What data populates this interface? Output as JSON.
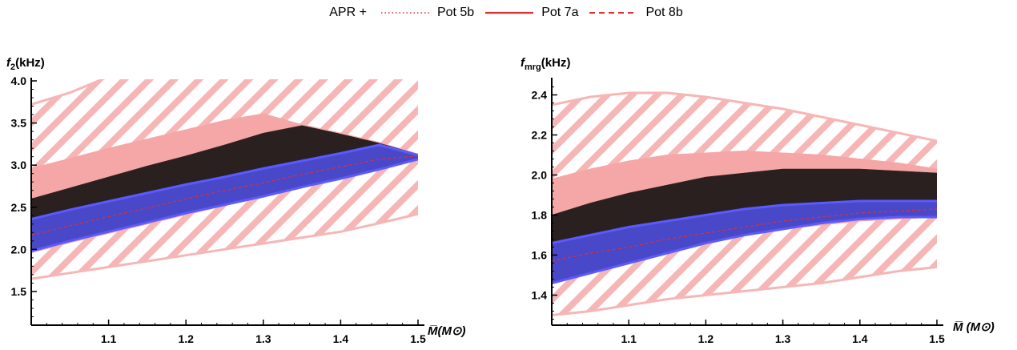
{
  "legend": {
    "prefix": "APR +",
    "entries": [
      {
        "name": "Pot 5b",
        "style": "dotted",
        "color": "#e03030"
      },
      {
        "name": "Pot 7a",
        "style": "solid",
        "color": "#e03030"
      },
      {
        "name": "Pot 8b",
        "style": "dashed",
        "color": "#e03030"
      }
    ]
  },
  "colors": {
    "hatch": "#f6b6b6",
    "pink_band": "#f5a6a6",
    "black_band": "#2a2020",
    "blue_band": "#4848c8",
    "blue_edge": "#5a5aff",
    "red_line": "#e03030"
  },
  "chart_data": [
    {
      "type": "area",
      "ylabel_main": "f",
      "ylabel_sub": "2",
      "ylabel_unit": "(kHz)",
      "xlabel": "M̅(M⊙)",
      "xlim": [
        1.0,
        1.5
      ],
      "ylim": [
        1.1,
        4.0
      ],
      "xticks": [
        1.1,
        1.2,
        1.3,
        1.4,
        1.5
      ],
      "xtick_labels": [
        "1.1",
        "1.2",
        "1.3",
        "1.4",
        "1.5"
      ],
      "yticks": [
        1.5,
        2.0,
        2.5,
        3.0,
        3.5,
        4.0
      ],
      "ytick_labels": [
        "1.5",
        "2.0",
        "2.5",
        "3.0",
        "3.5",
        "4.0"
      ],
      "x": [
        1.0,
        1.05,
        1.1,
        1.15,
        1.2,
        1.25,
        1.3,
        1.35,
        1.4,
        1.45,
        1.5
      ],
      "bands": [
        {
          "name": "hatch",
          "upper": [
            3.72,
            3.86,
            4.05,
            4.05,
            4.05,
            4.05,
            4.05,
            4.05,
            4.05,
            4.05,
            4.05
          ],
          "lower": [
            1.65,
            1.72,
            1.79,
            1.86,
            1.93,
            2.0,
            2.07,
            2.14,
            2.21,
            2.31,
            2.42
          ]
        },
        {
          "name": "pink_band",
          "upper": [
            2.96,
            3.08,
            3.2,
            3.31,
            3.42,
            3.53,
            3.61,
            3.48,
            3.38,
            3.27,
            3.13
          ],
          "lower": [
            1.96,
            2.08,
            2.19,
            2.3,
            2.41,
            2.52,
            2.62,
            2.73,
            2.84,
            2.96,
            3.07
          ]
        },
        {
          "name": "black_band",
          "upper": [
            2.6,
            2.73,
            2.86,
            2.99,
            3.11,
            3.24,
            3.38,
            3.47,
            3.37,
            3.26,
            3.13
          ],
          "lower": [
            2.34,
            2.45,
            2.56,
            2.66,
            2.76,
            2.85,
            2.94,
            3.02,
            3.1,
            3.2,
            3.12
          ]
        },
        {
          "name": "blue_band",
          "upper": [
            2.36,
            2.47,
            2.57,
            2.67,
            2.77,
            2.86,
            2.96,
            3.05,
            3.14,
            3.24,
            3.12
          ],
          "lower": [
            1.98,
            2.1,
            2.21,
            2.32,
            2.43,
            2.53,
            2.63,
            2.74,
            2.84,
            2.95,
            3.07
          ]
        }
      ],
      "red_line": [
        2.17,
        2.28,
        2.39,
        2.49,
        2.6,
        2.7,
        2.79,
        2.89,
        2.98,
        3.07,
        3.11
      ]
    },
    {
      "type": "area",
      "ylabel_main": "f",
      "ylabel_sub": "mrg",
      "ylabel_unit": "(kHz)",
      "xlabel": "M̅ (M⊙)",
      "xlim": [
        1.0,
        1.5
      ],
      "ylim": [
        1.25,
        2.47
      ],
      "xticks": [
        1.1,
        1.2,
        1.3,
        1.4,
        1.5
      ],
      "xtick_labels": [
        "1.1",
        "1.2",
        "1.3",
        "1.4",
        "1.5"
      ],
      "yticks": [
        1.4,
        1.6,
        1.8,
        2.0,
        2.2,
        2.4
      ],
      "ytick_labels": [
        "1.4",
        "1.6",
        "1.8",
        "2.0",
        "2.2",
        "2.4"
      ],
      "x": [
        1.0,
        1.05,
        1.1,
        1.15,
        1.2,
        1.25,
        1.3,
        1.35,
        1.4,
        1.45,
        1.5
      ],
      "bands": [
        {
          "name": "hatch",
          "upper": [
            2.35,
            2.39,
            2.41,
            2.41,
            2.39,
            2.36,
            2.33,
            2.29,
            2.25,
            2.21,
            2.17
          ],
          "lower": [
            1.3,
            1.32,
            1.35,
            1.38,
            1.4,
            1.42,
            1.44,
            1.46,
            1.49,
            1.52,
            1.54
          ]
        },
        {
          "name": "pink_band",
          "upper": [
            1.98,
            2.03,
            2.07,
            2.1,
            2.11,
            2.12,
            2.11,
            2.1,
            2.08,
            2.06,
            2.03
          ],
          "lower": [
            1.47,
            1.52,
            1.57,
            1.62,
            1.66,
            1.7,
            1.73,
            1.75,
            1.77,
            1.78,
            1.79
          ]
        },
        {
          "name": "black_band",
          "upper": [
            1.8,
            1.86,
            1.91,
            1.95,
            1.99,
            2.01,
            2.03,
            2.03,
            2.03,
            2.02,
            2.01
          ],
          "lower": [
            1.66,
            1.7,
            1.74,
            1.77,
            1.8,
            1.83,
            1.85,
            1.86,
            1.87,
            1.87,
            1.87
          ]
        },
        {
          "name": "blue_band",
          "upper": [
            1.66,
            1.7,
            1.74,
            1.77,
            1.8,
            1.83,
            1.85,
            1.86,
            1.87,
            1.87,
            1.87
          ],
          "lower": [
            1.46,
            1.51,
            1.56,
            1.61,
            1.66,
            1.7,
            1.73,
            1.76,
            1.78,
            1.79,
            1.79
          ]
        }
      ],
      "red_line": [
        1.57,
        1.61,
        1.64,
        1.68,
        1.71,
        1.74,
        1.77,
        1.79,
        1.81,
        1.82,
        1.83
      ]
    }
  ]
}
